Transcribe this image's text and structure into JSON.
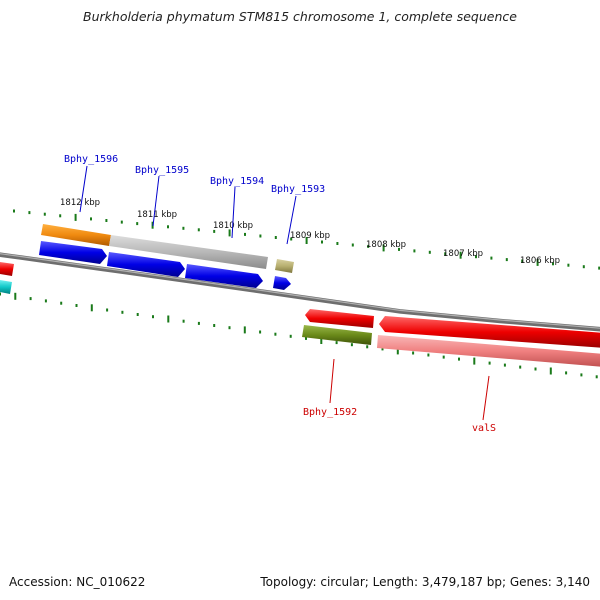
{
  "title": "Burkholderia phymatum STM815 chromosome 1, complete sequence",
  "footer": {
    "accession": "Accession: NC_010622",
    "stats": "Topology: circular; Length: 3,479,187 bp; Genes: 3,140"
  },
  "kbp_labels": [
    "1812 kbp",
    "1811 kbp",
    "1810 kbp",
    "1809 kbp",
    "1808 kbp",
    "1807 kbp",
    "1806 kbp"
  ],
  "gene_labels": [
    {
      "name": "Bphy_1596",
      "color": "#0000cc"
    },
    {
      "name": "Bphy_1595",
      "color": "#0000cc"
    },
    {
      "name": "Bphy_1594",
      "color": "#0000cc"
    },
    {
      "name": "Bphy_1593",
      "color": "#0000cc"
    },
    {
      "name": "Bphy_1592",
      "color": "#cc0000"
    },
    {
      "name": "valS",
      "color": "#cc0000"
    }
  ],
  "colors": {
    "backbone": "#808080",
    "tick": "#1a7a1a",
    "blue_gene": "#0000e0",
    "red_gene": "#ee0000",
    "pink_gene": "#f08080",
    "orange_feature": "#f08a10",
    "gray_feature": "#b8b8b8",
    "olive_feature": "#6b8a1a",
    "khaki_feature": "#b8b070",
    "cyan_feature": "#10c8c8"
  }
}
